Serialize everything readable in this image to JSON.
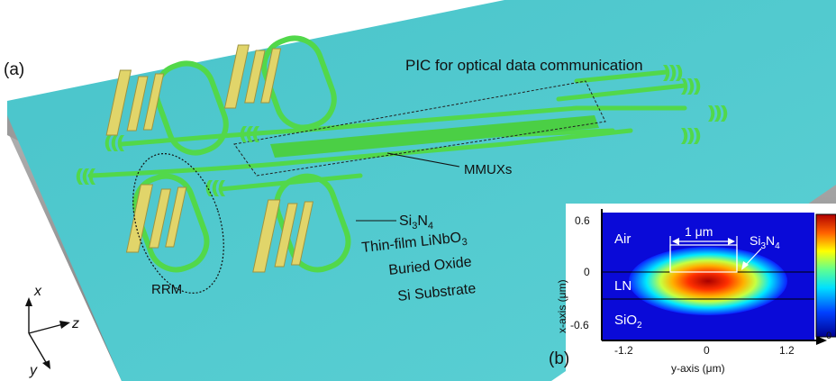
{
  "figure": {
    "panel_a": {
      "tag": "(a)",
      "title": "PIC for optical data communication",
      "mmux_label": "MMUXs",
      "rrm_label": "RRM",
      "si3n4": {
        "base": "Si",
        "sub1": "3",
        "mid": "N",
        "sub2": "4"
      },
      "thin_film": {
        "base": "Thin-film LiNbO",
        "sub": "3"
      },
      "buried_oxide": "Buried Oxide",
      "si_substrate": "Si Substrate",
      "axes": {
        "x": "x",
        "y": "y",
        "z": "z"
      }
    },
    "panel_b": {
      "tag": "(b)",
      "air": "Air",
      "ln": "LN",
      "sio2": {
        "base": "SiO",
        "sub": "2"
      },
      "width_label": "1 μm",
      "si3n4": {
        "base": "Si",
        "sub1": "3",
        "mid": "N",
        "sub2": "4"
      },
      "x_axis_label": "x-axis (μm)",
      "y_axis_label": "y-axis (μm)",
      "x_ticks": [
        "0.6",
        "0",
        "-0.6"
      ],
      "y_ticks": [
        "-1.2",
        "0",
        "1.2"
      ],
      "colorbar_bottom": "0"
    }
  },
  "colors": {
    "top_surface": "#4ec9cf",
    "waveguide": "#52d84a",
    "electrode": "#e1d56a",
    "oxide": "#a9a9a9",
    "substrate": "#8a8a8a"
  }
}
